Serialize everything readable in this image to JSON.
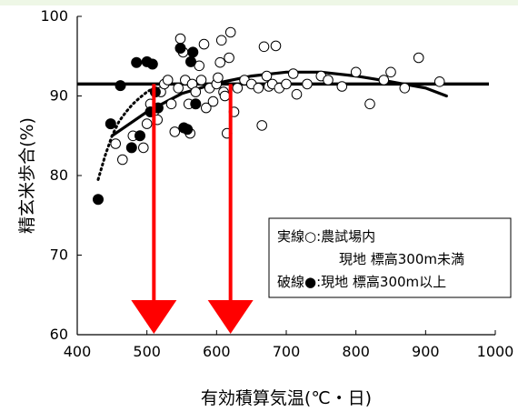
{
  "chart_data": {
    "type": "scatter",
    "xlabel": "有効積算気温(℃・日)",
    "ylabel": "精玄米歩合(%)",
    "xlim": [
      400,
      1000
    ],
    "ylim": [
      60,
      100
    ],
    "x_ticks": [
      400,
      500,
      600,
      700,
      800,
      900,
      1000
    ],
    "y_ticks": [
      60,
      70,
      80,
      90,
      100
    ],
    "grid": false,
    "legend_position": "lower-right",
    "legend": {
      "line1": "実線○:農試場内",
      "line2": "現地 標高300m未満",
      "line3": "破線●:現地 標高300m以上"
    },
    "series": [
      {
        "marker": "open-circle",
        "points": [
          [
            455,
            84
          ],
          [
            465,
            82
          ],
          [
            480,
            85
          ],
          [
            495,
            83.5
          ],
          [
            500,
            86.5
          ],
          [
            505,
            89
          ],
          [
            510,
            88
          ],
          [
            515,
            87
          ],
          [
            520,
            90.5
          ],
          [
            525,
            91.5
          ],
          [
            530,
            92
          ],
          [
            535,
            89
          ],
          [
            540,
            85.5
          ],
          [
            545,
            91
          ],
          [
            548,
            97.2
          ],
          [
            552,
            95.5
          ],
          [
            555,
            92
          ],
          [
            560,
            89
          ],
          [
            562,
            85.3
          ],
          [
            565,
            91.5
          ],
          [
            570,
            90.5
          ],
          [
            575,
            93.8
          ],
          [
            578,
            92
          ],
          [
            582,
            96.5
          ],
          [
            585,
            88.5
          ],
          [
            590,
            91
          ],
          [
            595,
            89.3
          ],
          [
            600,
            91.5
          ],
          [
            602,
            92.3
          ],
          [
            605,
            94.2
          ],
          [
            607,
            97
          ],
          [
            610,
            90.5
          ],
          [
            612,
            90
          ],
          [
            615,
            85.3
          ],
          [
            618,
            94.8
          ],
          [
            620,
            98
          ],
          [
            625,
            88
          ],
          [
            630,
            91
          ],
          [
            640,
            92
          ],
          [
            650,
            91.5
          ],
          [
            660,
            91
          ],
          [
            665,
            86.3
          ],
          [
            668,
            96.2
          ],
          [
            672,
            92.5
          ],
          [
            675,
            91.2
          ],
          [
            680,
            91.5
          ],
          [
            685,
            96.3
          ],
          [
            690,
            91
          ],
          [
            700,
            91.5
          ],
          [
            710,
            92.8
          ],
          [
            715,
            90.2
          ],
          [
            730,
            91.5
          ],
          [
            750,
            92.5
          ],
          [
            760,
            92
          ],
          [
            780,
            91.2
          ],
          [
            800,
            93
          ],
          [
            820,
            89
          ],
          [
            840,
            92
          ],
          [
            850,
            93
          ],
          [
            870,
            91
          ],
          [
            890,
            94.8
          ],
          [
            920,
            91.8
          ]
        ]
      },
      {
        "marker": "filled-circle",
        "points": [
          [
            430,
            77
          ],
          [
            448,
            86.5
          ],
          [
            462,
            91.3
          ],
          [
            478,
            83.5
          ],
          [
            485,
            94.2
          ],
          [
            490,
            85
          ],
          [
            500,
            94.3
          ],
          [
            505,
            88
          ],
          [
            508,
            94
          ],
          [
            512,
            90.5
          ],
          [
            516,
            88.5
          ],
          [
            548,
            96
          ],
          [
            553,
            86
          ],
          [
            558,
            85.8
          ],
          [
            563,
            94.3
          ],
          [
            566,
            95.5
          ],
          [
            570,
            89
          ]
        ]
      }
    ],
    "curves": [
      {
        "style": "solid",
        "points": [
          [
            450,
            85
          ],
          [
            500,
            88
          ],
          [
            550,
            90.3
          ],
          [
            600,
            91.6
          ],
          [
            650,
            92.5
          ],
          [
            700,
            93
          ],
          [
            750,
            93
          ],
          [
            800,
            92.5
          ],
          [
            850,
            91.8
          ],
          [
            900,
            91
          ],
          [
            930,
            90
          ]
        ]
      },
      {
        "style": "dotted",
        "points": [
          [
            430,
            79.5
          ],
          [
            440,
            82.5
          ],
          [
            450,
            85
          ],
          [
            460,
            86.8
          ],
          [
            470,
            88
          ],
          [
            480,
            89
          ],
          [
            490,
            89.8
          ],
          [
            500,
            90.5
          ],
          [
            510,
            91
          ]
        ]
      }
    ],
    "reference_line": {
      "y": 91.5
    },
    "arrows": [
      {
        "x": 510
      },
      {
        "x": 620
      }
    ]
  }
}
